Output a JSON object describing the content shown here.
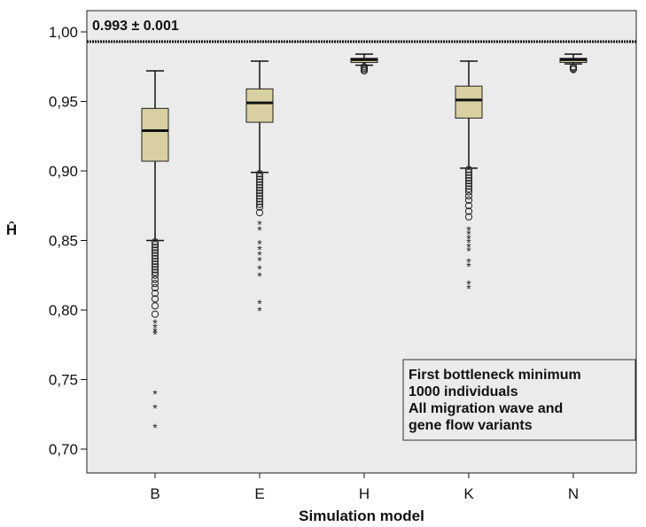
{
  "chart_data": {
    "type": "box",
    "xlabel": "Simulation model",
    "ylabel": "Ĥ",
    "ylim": [
      0.68,
      1.015
    ],
    "yticks": [
      "0,70",
      "0,75",
      "0,80",
      "0,85",
      "0,90",
      "0,95",
      "1,00"
    ],
    "yticks_values": [
      0.7,
      0.75,
      0.8,
      0.85,
      0.9,
      0.95,
      1.0
    ],
    "categories": [
      "B",
      "E",
      "H",
      "K",
      "N"
    ],
    "box_color": "#d8d0a0",
    "background_color": "#ebebeb",
    "reference_line": {
      "value": 0.993,
      "label": "0.993 ± 0.001"
    },
    "annotation": [
      "First bottleneck minimum",
      "1000 individuals",
      "All migration wave and",
      "gene flow variants"
    ],
    "boxes": [
      {
        "category": "B",
        "whisker_low": 0.85,
        "q1": 0.907,
        "median": 0.929,
        "q3": 0.945,
        "whisker_high": 0.972,
        "outliers": [
          0.849,
          0.847,
          0.845,
          0.843,
          0.841,
          0.839,
          0.837,
          0.835,
          0.833,
          0.831,
          0.829,
          0.827,
          0.825,
          0.822,
          0.819,
          0.816,
          0.812,
          0.808,
          0.803,
          0.797
        ],
        "extremes": [
          0.791,
          0.788,
          0.785,
          0.783,
          0.74,
          0.73,
          0.716
        ]
      },
      {
        "category": "E",
        "whisker_low": 0.899,
        "q1": 0.935,
        "median": 0.949,
        "q3": 0.959,
        "whisker_high": 0.979,
        "outliers": [
          0.898,
          0.896,
          0.894,
          0.892,
          0.89,
          0.888,
          0.886,
          0.884,
          0.882,
          0.88,
          0.878,
          0.876,
          0.874,
          0.87
        ],
        "extremes": [
          0.862,
          0.858,
          0.848,
          0.844,
          0.84,
          0.836,
          0.83,
          0.825,
          0.805,
          0.8
        ]
      },
      {
        "category": "H",
        "whisker_low": 0.976,
        "q1": 0.978,
        "median": 0.98,
        "q3": 0.981,
        "whisker_high": 0.984,
        "outliers": [
          0.975,
          0.974,
          0.973,
          0.972
        ],
        "extremes": []
      },
      {
        "category": "K",
        "whisker_low": 0.902,
        "q1": 0.938,
        "median": 0.951,
        "q3": 0.961,
        "whisker_high": 0.979,
        "outliers": [
          0.901,
          0.899,
          0.897,
          0.895,
          0.893,
          0.891,
          0.889,
          0.887,
          0.885,
          0.882,
          0.879,
          0.875,
          0.871,
          0.867
        ],
        "extremes": [
          0.858,
          0.855,
          0.852,
          0.849,
          0.846,
          0.843,
          0.835,
          0.832,
          0.819,
          0.816
        ]
      },
      {
        "category": "N",
        "whisker_low": 0.977,
        "q1": 0.978,
        "median": 0.98,
        "q3": 0.981,
        "whisker_high": 0.984,
        "outliers": [
          0.975,
          0.974,
          0.973
        ],
        "extremes": [
          0.971
        ]
      }
    ]
  }
}
